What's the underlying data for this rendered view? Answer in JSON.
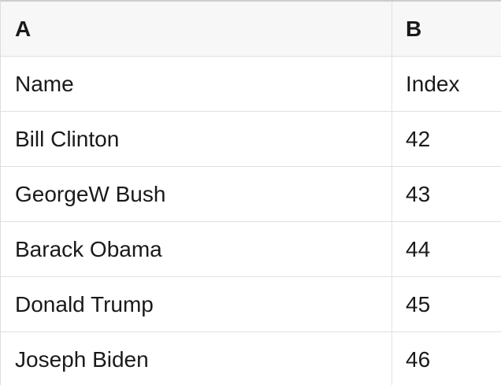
{
  "table": {
    "column_headers": [
      {
        "label": "A"
      },
      {
        "label": "B"
      }
    ],
    "rows": [
      {
        "a": "Name",
        "b": "Index"
      },
      {
        "a": "Bill Clinton",
        "b": "42"
      },
      {
        "a": "GeorgeW Bush",
        "b": "43"
      },
      {
        "a": "Barack Obama",
        "b": "44"
      },
      {
        "a": "Donald Trump",
        "b": "45"
      },
      {
        "a": "Joseph Biden",
        "b": "46"
      }
    ]
  },
  "colors": {
    "header_background": "#f7f7f7",
    "row_background": "#ffffff",
    "gridline": "#e0e0e0",
    "top_border": "#cccccc",
    "text": "#1a1a1a"
  }
}
